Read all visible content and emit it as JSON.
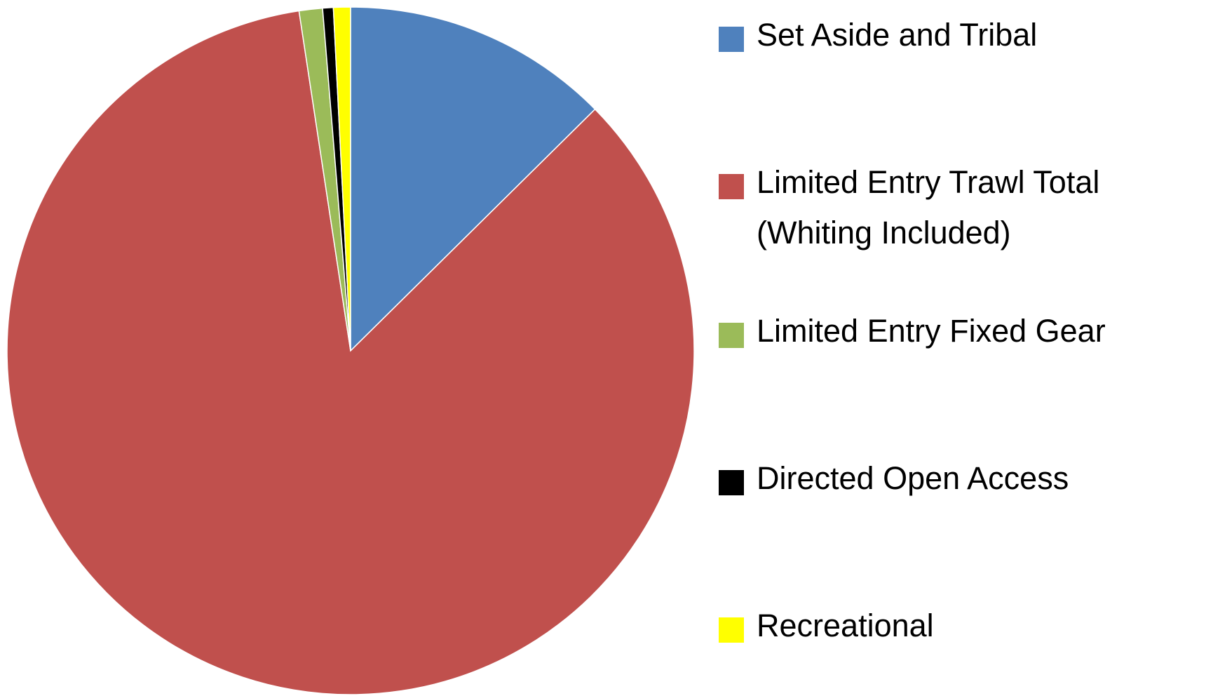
{
  "chart_data": {
    "type": "pie",
    "series": [
      {
        "name": "Set Aside and Tribal",
        "color": "#4f81bd",
        "values": [
          12.6
        ]
      },
      {
        "name": "Limited Entry Trawl Total (Whiting Included)",
        "color": "#c0504d",
        "values": [
          85.0
        ]
      },
      {
        "name": "Limited Entry Fixed Gear",
        "color": "#9bbb59",
        "values": [
          1.1
        ]
      },
      {
        "name": "Directed Open Access",
        "color": "#000000",
        "values": [
          0.5
        ]
      },
      {
        "name": "Recreational",
        "color": "#ffff00",
        "values": [
          0.8
        ]
      }
    ],
    "legend": "right"
  }
}
